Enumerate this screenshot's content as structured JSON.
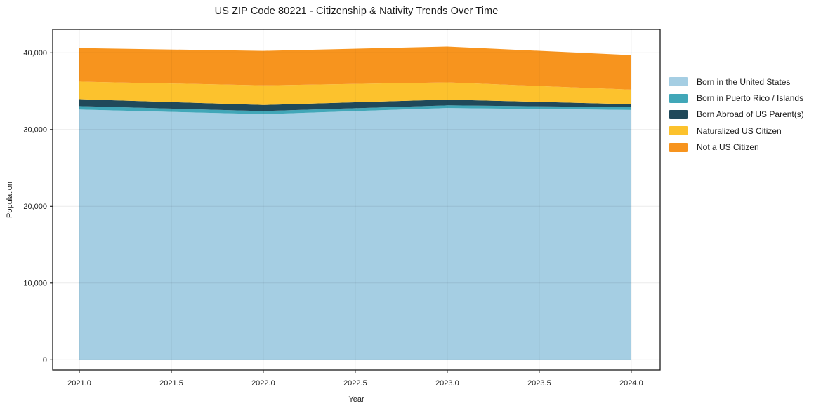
{
  "chart_data": {
    "type": "area",
    "stacked": true,
    "title": "US ZIP Code 80221 - Citizenship & Nativity Trends Over Time",
    "xlabel": "Year",
    "ylabel": "Population",
    "x": [
      2021,
      2022,
      2023,
      2024
    ],
    "series": [
      {
        "name": "Born in the United States",
        "color": "#a5cee3",
        "values": [
          32600,
          32000,
          32800,
          32550
        ]
      },
      {
        "name": "Born in Puerto Rico / Islands",
        "color": "#41a7b8",
        "values": [
          450,
          400,
          350,
          350
        ]
      },
      {
        "name": "Born Abroad of US Parent(s)",
        "color": "#20495a",
        "values": [
          900,
          800,
          750,
          400
        ]
      },
      {
        "name": "Naturalized US Citizen",
        "color": "#fcc22d",
        "values": [
          2300,
          2550,
          2250,
          1900
        ]
      },
      {
        "name": "Not a US Citizen",
        "color": "#f7941e",
        "values": [
          4350,
          4500,
          4650,
          4500
        ]
      }
    ],
    "stacked_totals": [
      40600,
      40250,
      40800,
      39700
    ],
    "xticks": {
      "values": [
        2021.0,
        2021.5,
        2022.0,
        2022.5,
        2023.0,
        2023.5,
        2024.0
      ],
      "labels": [
        "2021.0",
        "2021.5",
        "2022.0",
        "2022.5",
        "2023.0",
        "2023.5",
        "2024.0"
      ]
    },
    "yticks": {
      "values": [
        0,
        10000,
        20000,
        30000,
        40000
      ],
      "labels": [
        "0",
        "10,000",
        "20,000",
        "30,000",
        "40,000"
      ]
    },
    "xlim": [
      2020.855,
      2024.157
    ],
    "ylim": [
      -1340,
      43040
    ],
    "grid": true,
    "legend_position": "right-outside"
  }
}
